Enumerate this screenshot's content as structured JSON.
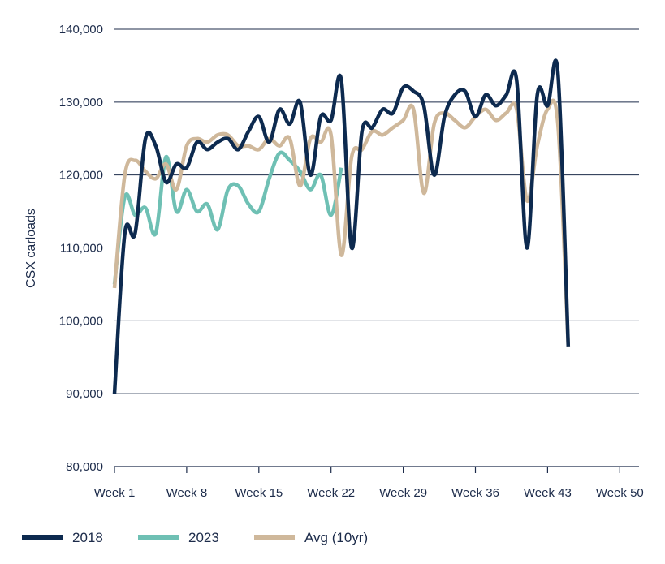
{
  "chart_data": {
    "type": "line",
    "ylabel": "CSX carloads",
    "xlabel": "",
    "ylim": [
      80000,
      140000
    ],
    "yticks": [
      80000,
      90000,
      100000,
      110000,
      120000,
      130000,
      140000
    ],
    "ytick_labels": [
      "80,000",
      "90,000",
      "100,000",
      "110,000",
      "120,000",
      "130,000",
      "140,000"
    ],
    "xlim": [
      1,
      52
    ],
    "xticks": [
      1,
      8,
      15,
      22,
      29,
      36,
      43,
      50
    ],
    "xtick_labels": [
      "Week 1",
      "Week 8",
      "Week 15",
      "Week 22",
      "Week 29",
      "Week 36",
      "Week 43",
      "Week 50"
    ],
    "grid": "horizontal",
    "legend_position": "bottom",
    "series": [
      {
        "name": "2018",
        "color": "#0d2a4f",
        "x": [
          1,
          2,
          3,
          4,
          5,
          6,
          7,
          8,
          9,
          10,
          11,
          12,
          13,
          14,
          15,
          16,
          17,
          18,
          19,
          20,
          21,
          22,
          23,
          24,
          25,
          26,
          27,
          28,
          29,
          30,
          31,
          32,
          33,
          34,
          35,
          36,
          37,
          38,
          39,
          40,
          41,
          42,
          43,
          44,
          45,
          46,
          47,
          48,
          49,
          50,
          51,
          52
        ],
        "values": [
          90000,
          112000,
          112000,
          125000,
          124000,
          119000,
          121500,
          121000,
          124500,
          123500,
          124500,
          125000,
          123500,
          126000,
          128000,
          124500,
          129000,
          127000,
          130000,
          120000,
          128000,
          127500,
          133000,
          110000,
          126000,
          126500,
          129000,
          128500,
          132000,
          131500,
          129500,
          120000,
          128000,
          131000,
          131500,
          128000,
          131000,
          129500,
          131000,
          133000,
          110000,
          131000,
          129500,
          134000,
          96500,
          null,
          null,
          null,
          null,
          null,
          null,
          null
        ]
      },
      {
        "name": "2023",
        "color": "#6fc0b4",
        "x": [
          1,
          2,
          3,
          4,
          5,
          6,
          7,
          8,
          9,
          10,
          11,
          12,
          13,
          14,
          15,
          16,
          17,
          18,
          19,
          20,
          21,
          22,
          23
        ],
        "values": [
          105000,
          117000,
          114500,
          115500,
          112000,
          122500,
          115000,
          118000,
          115000,
          116000,
          112500,
          118000,
          118500,
          116000,
          115000,
          119500,
          123000,
          122000,
          120500,
          118000,
          120000,
          114500,
          121000
        ]
      },
      {
        "name": "Avg (10yr)",
        "color": "#cfb89b",
        "x": [
          1,
          2,
          3,
          4,
          5,
          6,
          7,
          8,
          9,
          10,
          11,
          12,
          13,
          14,
          15,
          16,
          17,
          18,
          19,
          20,
          21,
          22,
          23,
          24,
          25,
          26,
          27,
          28,
          29,
          30,
          31,
          32,
          33,
          34,
          35,
          36,
          37,
          38,
          39,
          40,
          41,
          42,
          43,
          44,
          45,
          46,
          47,
          48,
          49,
          50,
          51,
          52
        ],
        "values": [
          104500,
          120000,
          122000,
          120500,
          119500,
          121500,
          118000,
          124000,
          125000,
          124500,
          125500,
          125500,
          124000,
          124000,
          123500,
          125000,
          124000,
          125000,
          118500,
          125000,
          124500,
          125500,
          109000,
          122500,
          123500,
          126000,
          125500,
          126500,
          127500,
          129000,
          117500,
          127000,
          128500,
          127500,
          126500,
          128000,
          129000,
          127500,
          128500,
          129000,
          116500,
          124000,
          129000,
          127000,
          96500,
          null,
          null,
          null,
          null,
          null,
          null,
          null
        ]
      }
    ]
  },
  "legend": {
    "items": [
      {
        "label": "2018",
        "color": "#0d2a4f"
      },
      {
        "label": "2023",
        "color": "#6fc0b4"
      },
      {
        "label": "Avg (10yr)",
        "color": "#cfb89b"
      }
    ]
  }
}
